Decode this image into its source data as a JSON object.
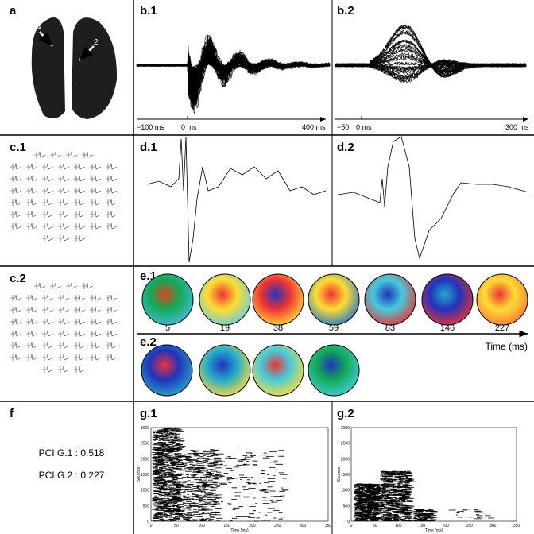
{
  "panels": {
    "a": {
      "label": "a",
      "markers": [
        "1",
        "2"
      ]
    },
    "b1": {
      "label": "b.1",
      "axis_labels": [
        "−100 ms",
        "0 ms",
        "400 ms"
      ]
    },
    "b2": {
      "label": "b.2",
      "axis_labels": [
        "−50",
        "0 ms",
        "300 ms"
      ]
    },
    "c1": {
      "label": "c.1"
    },
    "c2": {
      "label": "c.2"
    },
    "d1": {
      "label": "d.1"
    },
    "d2": {
      "label": "d.2"
    },
    "e1": {
      "label": "e.1",
      "times": [
        5,
        19,
        38,
        59,
        83,
        146,
        227
      ],
      "time_axis_label": "Time (ms)"
    },
    "e2": {
      "label": "e.2"
    },
    "f": {
      "label": "f",
      "lines": [
        "PCI G.1 : 0.518",
        "PCI G.2 : 0.227"
      ]
    },
    "g1": {
      "label": "g.1",
      "y_axis_label": "Sources",
      "x_axis_label": "Time (ms)",
      "yticks": [
        0,
        500,
        1000,
        1500,
        2000,
        2500,
        3000
      ],
      "xticks": [
        0,
        50,
        100,
        150,
        200,
        250,
        300,
        350
      ]
    },
    "g2": {
      "label": "g.2",
      "y_axis_label": "Sources",
      "x_axis_label": "Time (ms)",
      "yticks": [
        0,
        500,
        1000,
        1500,
        2000,
        2500,
        3000
      ],
      "xticks": [
        0,
        50,
        100,
        150,
        200,
        250,
        300,
        350
      ]
    }
  }
}
